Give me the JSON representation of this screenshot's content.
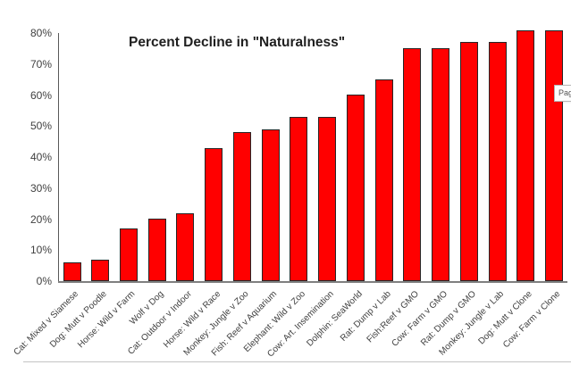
{
  "chart_data": {
    "type": "bar",
    "title": "Percent Decline in \"Naturalness\"",
    "categories": [
      "Cat: Mixed v Siamese",
      "Dog: Mutt v Poodle",
      "Horse: Wild v Farm",
      "Wolf v Dog",
      "Cat: Outdoor v Indoor",
      "Horse: Wild v Race",
      "Monkey: Jungle v Zoo",
      "Fish: Reef v Aquarium",
      "Elephant: Wild v Zoo",
      "Cow: Art. Insemination",
      "Dolphin: SeaWorld",
      "Rat: Dump v Lab",
      "Fish:Reef v GMO",
      "Cow: Farm v GMO",
      "Rat: Dump v GMO",
      "Monkey: Jungle v Lab",
      "Dog: Mutt v Clone",
      "Cow: Farm v Clone"
    ],
    "values": [
      6,
      7,
      17,
      20,
      22,
      43,
      48,
      49,
      53,
      53,
      60,
      65,
      75,
      75,
      77,
      77,
      81,
      81
    ],
    "xlabel": "",
    "ylabel": "",
    "ylim": [
      0,
      80
    ],
    "ytick_labels": [
      "0%",
      "10%",
      "20%",
      "30%",
      "40%",
      "50%",
      "60%",
      "70%",
      "80%"
    ],
    "grid": false,
    "legend_position": "none",
    "bar_color": "#ff0000",
    "bar_border_color": "#262626"
  },
  "tooltip": {
    "text": "Pag"
  }
}
